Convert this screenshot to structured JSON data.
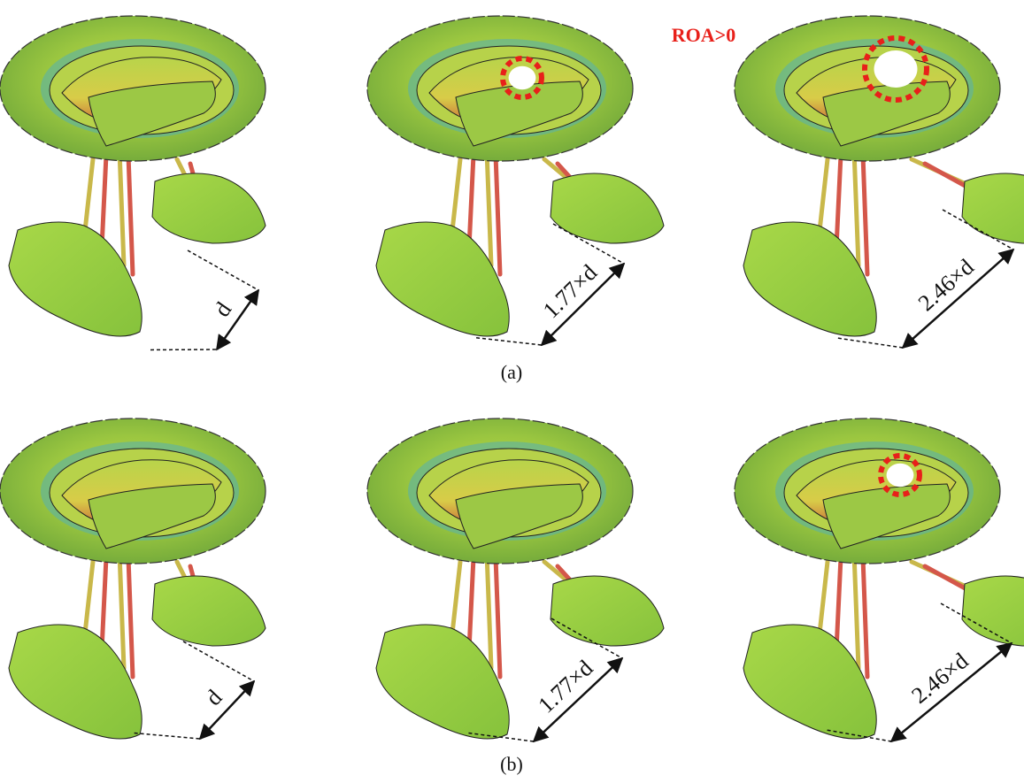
{
  "annotation": "ROA>0",
  "rows": [
    {
      "caption": "(a)",
      "panels": [
        {
          "distance_label": "d"
        },
        {
          "distance_label": "1.77×d"
        },
        {
          "distance_label": "2.46×d"
        }
      ]
    },
    {
      "caption": "(b)",
      "panels": [
        {
          "distance_label": "d"
        },
        {
          "distance_label": "1.77×d"
        },
        {
          "distance_label": "2.46×d"
        }
      ]
    }
  ]
}
